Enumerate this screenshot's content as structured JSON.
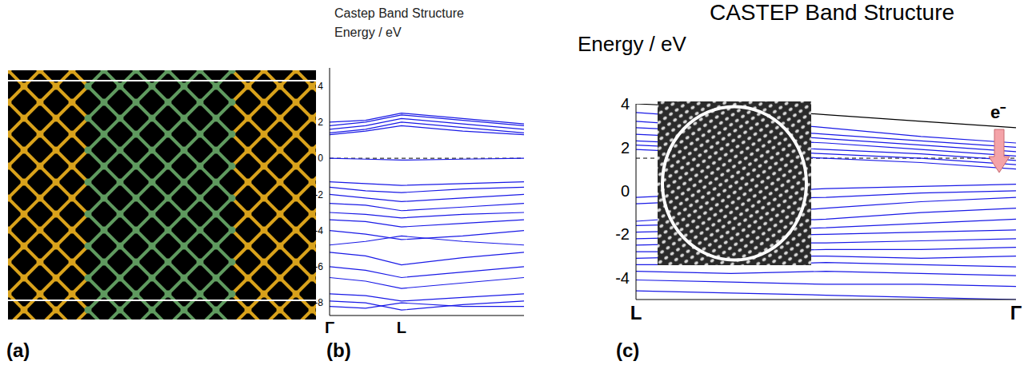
{
  "diagram": {
    "label": "(a)"
  },
  "chart_data": [
    {
      "type": "line",
      "label": "(b)",
      "title": "Castep Band Structure",
      "y_label": "Energy / eV",
      "x": [
        0,
        0.185,
        0.37,
        0.685,
        1
      ],
      "xlim": [
        0,
        1
      ],
      "xticks": [
        {
          "value": 0,
          "label": "Γ"
        },
        {
          "value": 0.37,
          "label": "L"
        }
      ],
      "ylim": [
        -8.7,
        5
      ],
      "yticks": [
        4,
        2,
        0,
        -2,
        -4,
        -6,
        -8
      ],
      "fermi_level": 0,
      "series": [
        {
          "color": "#1a1ae6",
          "values": [
            1.8,
            2.0,
            2.4,
            2.1,
            1.8
          ]
        },
        {
          "color": "#1a1ae6",
          "values": [
            1.6,
            1.8,
            2.2,
            1.9,
            1.6
          ]
        },
        {
          "color": "#1a1ae6",
          "values": [
            1.4,
            1.6,
            2.0,
            1.7,
            1.4
          ]
        },
        {
          "color": "#1a1ae6",
          "values": [
            1.3,
            1.5,
            1.8,
            1.5,
            1.3
          ]
        },
        {
          "color": "#1a1ae6",
          "values": [
            2.0,
            2.1,
            2.5,
            2.2,
            1.9
          ]
        },
        {
          "color": "#1a1ae6",
          "values": [
            0,
            -0.05,
            -0.1,
            -0.05,
            0
          ]
        },
        {
          "color": "#1a1ae6",
          "values": [
            -1.3,
            -1.4,
            -1.5,
            -1.4,
            -1.3
          ]
        },
        {
          "color": "#1a1ae6",
          "values": [
            -1.6,
            -1.8,
            -1.9,
            -1.7,
            -1.6
          ]
        },
        {
          "color": "#1a1ae6",
          "values": [
            -2.0,
            -2.2,
            -2.4,
            -2.2,
            -2.0
          ]
        },
        {
          "color": "#1a1ae6",
          "values": [
            -2.5,
            -2.6,
            -2.9,
            -2.7,
            -2.5
          ]
        },
        {
          "color": "#1a1ae6",
          "values": [
            -3.0,
            -3.1,
            -3.3,
            -3.1,
            -3.0
          ]
        },
        {
          "color": "#1a1ae6",
          "values": [
            -3.4,
            -3.5,
            -3.8,
            -3.6,
            -3.4
          ]
        },
        {
          "color": "#1a1ae6",
          "values": [
            -4.0,
            -4.2,
            -4.5,
            -4.3,
            -4.0
          ]
        },
        {
          "color": "#1a1ae6",
          "values": [
            -4.8,
            -4.6,
            -4.3,
            -4.6,
            -4.8
          ]
        },
        {
          "color": "#1a1ae6",
          "values": [
            -5.2,
            -5.4,
            -5.9,
            -5.5,
            -5.2
          ]
        },
        {
          "color": "#1a1ae6",
          "values": [
            -6.0,
            -6.2,
            -6.6,
            -6.3,
            -6.0
          ]
        },
        {
          "color": "#1a1ae6",
          "values": [
            -6.6,
            -6.8,
            -7.2,
            -6.9,
            -6.6
          ]
        },
        {
          "color": "#1a1ae6",
          "values": [
            -7.5,
            -7.6,
            -7.9,
            -7.7,
            -7.5
          ]
        },
        {
          "color": "#1a1ae6",
          "values": [
            -7.9,
            -8.0,
            -8.4,
            -8.1,
            -7.9
          ]
        },
        {
          "color": "#1a1ae6",
          "values": [
            -8.2,
            -8.3,
            -8.0,
            -8.2,
            -8.2
          ]
        }
      ]
    },
    {
      "type": "line",
      "label": "(c)",
      "title": "CASTEP Band Structure",
      "y_label": "Energy / eV",
      "annotation": "e⁻",
      "x": [
        0,
        0.25,
        0.5,
        0.75,
        1
      ],
      "xlim": [
        0,
        1
      ],
      "xticks": [
        {
          "value": 0,
          "label": "L"
        },
        {
          "value": 1,
          "label": "Γ"
        }
      ],
      "ylim": [
        -5,
        4
      ],
      "yticks": [
        4,
        2,
        0,
        -2,
        -4
      ],
      "fermi_level": 1.5,
      "series": [
        {
          "color": "#000000",
          "values": [
            4.0,
            3.8,
            3.5,
            3.2,
            2.9
          ]
        },
        {
          "color": "#1a1ae6",
          "values": [
            3.6,
            3.3,
            2.9,
            2.5,
            2.2
          ]
        },
        {
          "color": "#1a1ae6",
          "values": [
            3.2,
            2.9,
            2.6,
            2.3,
            2.0
          ]
        },
        {
          "color": "#1a1ae6",
          "values": [
            2.9,
            2.7,
            2.4,
            2.1,
            1.8
          ]
        },
        {
          "color": "#1a1ae6",
          "values": [
            2.6,
            2.4,
            2.2,
            1.9,
            1.6
          ]
        },
        {
          "color": "#1a1ae6",
          "values": [
            2.3,
            2.1,
            1.9,
            1.7,
            1.4
          ]
        },
        {
          "color": "#1a1ae6",
          "values": [
            2.1,
            1.9,
            1.7,
            1.5,
            1.2
          ]
        },
        {
          "color": "#1a1ae6",
          "values": [
            1.9,
            1.7,
            1.5,
            1.3,
            1.0
          ]
        },
        {
          "color": "#1a1ae6",
          "values": [
            -0.3,
            -0.1,
            0.1,
            0.2,
            0.3
          ]
        },
        {
          "color": "#1a1ae6",
          "values": [
            -0.6,
            -0.4,
            -0.3,
            -0.1,
            0.0
          ]
        },
        {
          "color": "#1a1ae6",
          "values": [
            -1.4,
            -1.1,
            -0.8,
            -0.5,
            -0.3
          ]
        },
        {
          "color": "#1a1ae6",
          "values": [
            -1.6,
            -1.5,
            -1.3,
            -1.0,
            -0.8
          ]
        },
        {
          "color": "#1a1ae6",
          "values": [
            -1.9,
            -1.8,
            -1.7,
            -1.5,
            -1.3
          ]
        },
        {
          "color": "#1a1ae6",
          "values": [
            -2.2,
            -2.1,
            -2.0,
            -1.9,
            -1.8
          ]
        },
        {
          "color": "#1a1ae6",
          "values": [
            -2.5,
            -2.4,
            -2.4,
            -2.3,
            -2.2
          ]
        },
        {
          "color": "#1a1ae6",
          "values": [
            -2.8,
            -2.8,
            -2.7,
            -2.7,
            -2.6
          ]
        },
        {
          "color": "#1a1ae6",
          "values": [
            -3.1,
            -3.0,
            -3.0,
            -3.1,
            -3.0
          ]
        },
        {
          "color": "#1a1ae6",
          "values": [
            -3.4,
            -3.4,
            -3.3,
            -3.4,
            -3.5
          ]
        },
        {
          "color": "#1a1ae6",
          "values": [
            -3.7,
            -3.8,
            -3.7,
            -3.8,
            -3.9
          ]
        },
        {
          "color": "#1a1ae6",
          "values": [
            -4.1,
            -4.2,
            -4.3,
            -4.3,
            -4.4
          ]
        },
        {
          "color": "#1a1ae6",
          "values": [
            -4.6,
            -4.7,
            -4.8,
            -4.9,
            -5.0
          ]
        }
      ]
    }
  ]
}
